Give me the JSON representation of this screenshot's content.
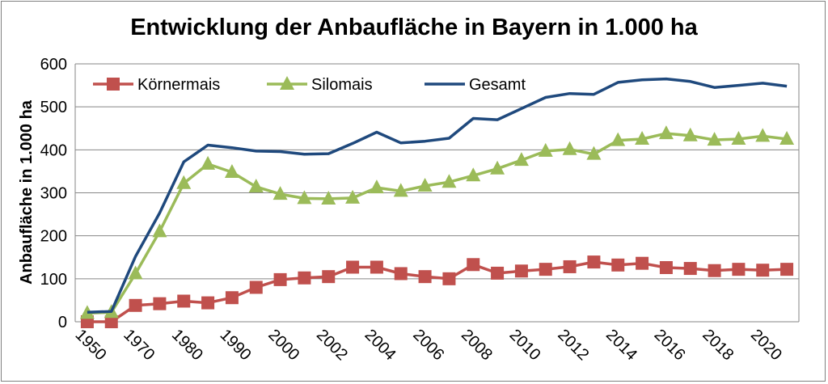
{
  "chart_data": {
    "type": "line",
    "title": "Entwicklung der Anbaufläche in Bayern in 1.000 ha",
    "ylabel": "Anbaufläche in 1.000 ha",
    "xlabel": "",
    "ylim": [
      0,
      600
    ],
    "yticks": [
      "0",
      "100",
      "200",
      "300",
      "400",
      "500",
      "600"
    ],
    "x_tick_labels": [
      "1950",
      "1970",
      "1980",
      "1990",
      "2000",
      "2002",
      "2004",
      "2006",
      "2008",
      "2010",
      "2012",
      "2014",
      "2016",
      "2018",
      "2020"
    ],
    "grid": true,
    "legend_position": "top",
    "series": [
      {
        "name": "Körnermais",
        "color": "#c0504d",
        "marker": "square",
        "values": [
          0,
          0,
          38,
          42,
          48,
          44,
          56,
          80,
          98,
          102,
          105,
          127,
          127,
          112,
          105,
          100,
          133,
          113,
          118,
          122,
          128,
          139,
          132,
          136,
          126,
          124,
          119,
          122,
          120,
          122
        ]
      },
      {
        "name": "Silomais",
        "color": "#9bbb59",
        "marker": "triangle",
        "values": [
          20,
          22,
          112,
          210,
          322,
          367,
          348,
          314,
          297,
          287,
          286,
          288,
          312,
          304,
          316,
          325,
          340,
          356,
          376,
          397,
          401,
          390,
          422,
          425,
          438,
          433,
          423,
          425,
          432,
          425
        ]
      },
      {
        "name": "Gesamt",
        "color": "#1f497d",
        "marker": "none",
        "values": [
          22,
          24,
          152,
          253,
          372,
          411,
          405,
          397,
          396,
          390,
          391,
          415,
          441,
          416,
          420,
          427,
          473,
          470,
          496,
          522,
          531,
          529,
          557,
          563,
          565,
          559,
          545,
          550,
          555,
          548
        ]
      }
    ]
  }
}
